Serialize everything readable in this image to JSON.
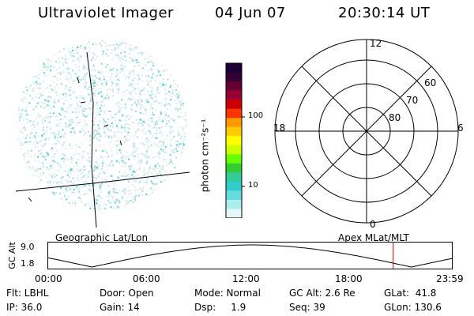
{
  "header": {
    "title": "Ultraviolet Imager",
    "date": "04 Jun 07",
    "time": "20:30:14 UT"
  },
  "colorbar": {
    "unit_label": "photon cm⁻²s⁻¹",
    "ticks": [
      "100",
      "10"
    ],
    "colors": [
      "#1a0033",
      "#330033",
      "#660033",
      "#990033",
      "#cc0000",
      "#ff3300",
      "#ff9900",
      "#ffcc00",
      "#ffff00",
      "#ccff00",
      "#66ff00",
      "#33cc33",
      "#33cc99",
      "#33cccc",
      "#66dddd",
      "#aaeeee",
      "#e6f5f5"
    ]
  },
  "polar": {
    "mlt_labels": {
      "top": "12",
      "left": "18",
      "right": "6",
      "bottom": "0"
    },
    "lat_labels": [
      "60",
      "70",
      "80"
    ]
  },
  "captions": {
    "left": "Geographic Lat/Lon",
    "right": "Apex MLat/MLT"
  },
  "orbit": {
    "ylabel": "GC Alt",
    "y_ticks": [
      "9.0",
      "1.8"
    ],
    "x_ticks": [
      "00:00",
      "06:00",
      "12:00",
      "18:00",
      "23:59"
    ],
    "current_time_fraction": 0.855,
    "marker_color": "#cc0000"
  },
  "info_rows": [
    [
      "Flt: LBHL",
      "Door: Open",
      "Mode: Normal",
      "GC Alt: 2.6 Re",
      "GLat:  41.8"
    ],
    [
      "IP: 36.0",
      "Gain: 14",
      "Dsp:     1.9",
      "Seq: 39",
      "GLon: 130.6"
    ]
  ]
}
